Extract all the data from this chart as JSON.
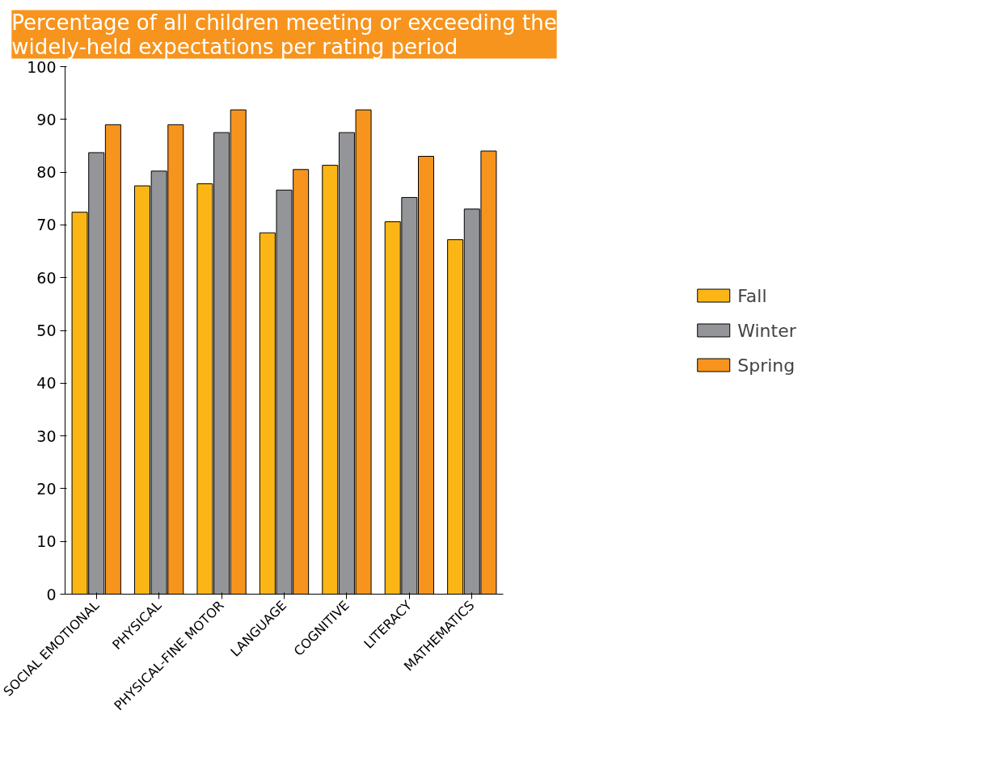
{
  "chart_data": {
    "type": "bar",
    "title": "Percentage of all children meeting or exceeding the\nwidely-held expectations per rating period",
    "categories": [
      "SOCIAL EMOTIONAL",
      "PHYSICAL",
      "PHYSICAL-FINE MOTOR",
      "LANGUAGE",
      "COGNITIVE",
      "LITERACY",
      "MATHEMATICS"
    ],
    "series": [
      {
        "name": "Fall",
        "color": "#fbb616",
        "values": [
          72.4,
          77.4,
          77.8,
          68.5,
          81.3,
          70.6,
          67.2
        ]
      },
      {
        "name": "Winter",
        "color": "#939598",
        "values": [
          83.7,
          80.2,
          87.5,
          76.6,
          87.5,
          75.2,
          73.0
        ]
      },
      {
        "name": "Spring",
        "color": "#f7941d",
        "values": [
          89.0,
          89.0,
          91.8,
          80.5,
          91.8,
          83.0,
          84.0
        ]
      }
    ],
    "ylim": [
      0,
      100
    ],
    "yticks": [
      0,
      10,
      20,
      30,
      40,
      50,
      60,
      70,
      80,
      90,
      100
    ],
    "grid": false,
    "legend": "right"
  }
}
